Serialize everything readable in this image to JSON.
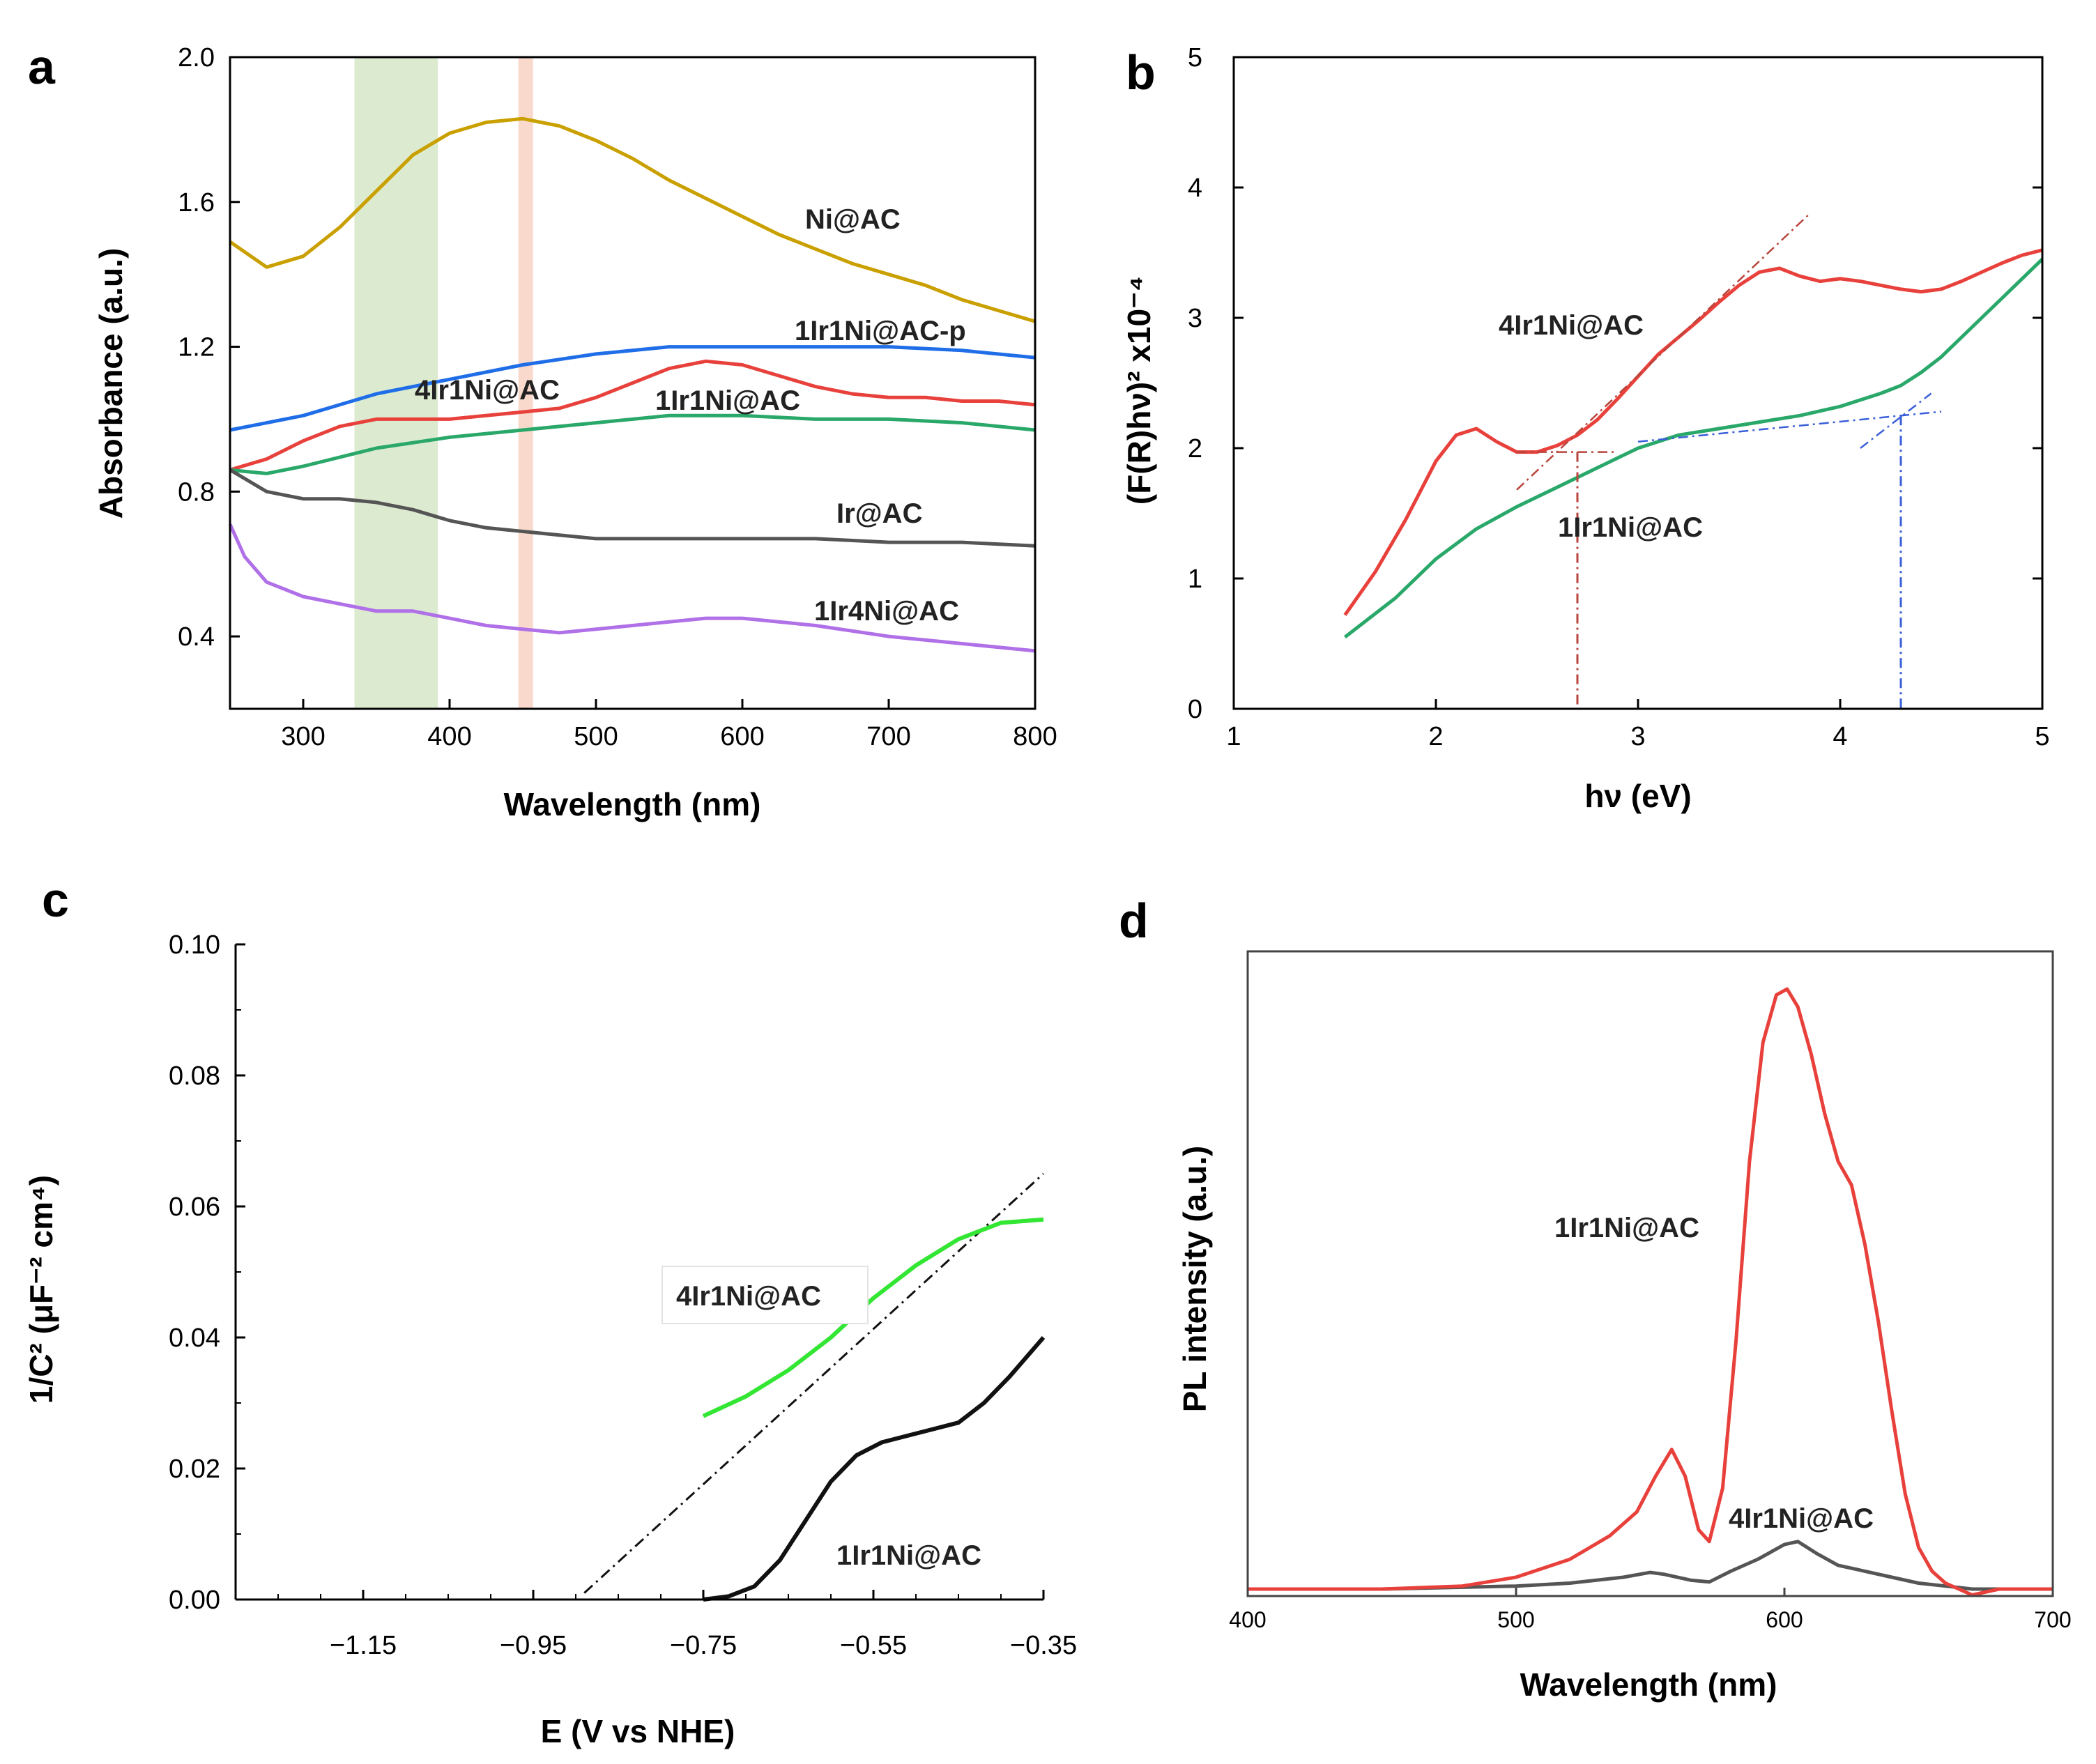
{
  "chart_data": [
    {
      "panel": "a",
      "type": "line",
      "title": "",
      "xlabel": "Wavelength (nm)",
      "ylabel": "Absorbance (a.u.)",
      "xlim": [
        250,
        800
      ],
      "ylim": [
        0.2,
        2.0
      ],
      "xticks": [
        300,
        400,
        500,
        600,
        700,
        800
      ],
      "yticks": [
        0.4,
        0.8,
        1.2,
        1.6,
        2.0
      ],
      "xtick_labels": [
        "300",
        "400",
        "500",
        "600",
        "700",
        "800"
      ],
      "ytick_labels": [
        "0.4",
        "0.8",
        "1.2",
        "1.6",
        "2.0"
      ],
      "bands": [
        {
          "from": 335,
          "to": 392,
          "color": "#dcebd0"
        },
        {
          "from": 447,
          "to": 457,
          "color": "#f8d9cc"
        }
      ],
      "series": [
        {
          "name": "Ni@AC",
          "color": "#c9a000",
          "x": [
            250,
            275,
            300,
            325,
            350,
            375,
            400,
            425,
            450,
            475,
            500,
            525,
            550,
            575,
            600,
            625,
            650,
            675,
            700,
            725,
            750,
            775,
            800
          ],
          "y": [
            1.49,
            1.42,
            1.45,
            1.53,
            1.63,
            1.73,
            1.79,
            1.82,
            1.83,
            1.81,
            1.77,
            1.72,
            1.66,
            1.61,
            1.56,
            1.51,
            1.47,
            1.43,
            1.4,
            1.37,
            1.33,
            1.3,
            1.27
          ]
        },
        {
          "name": "1Ir1Ni@AC-p",
          "color": "#1f6ee8",
          "x": [
            250,
            300,
            350,
            400,
            450,
            500,
            550,
            600,
            650,
            700,
            750,
            800
          ],
          "y": [
            0.97,
            1.01,
            1.07,
            1.11,
            1.15,
            1.18,
            1.2,
            1.2,
            1.2,
            1.2,
            1.19,
            1.17
          ]
        },
        {
          "name": "4Ir1Ni@AC",
          "color": "#e8413c",
          "x": [
            250,
            275,
            300,
            325,
            350,
            375,
            400,
            425,
            450,
            475,
            500,
            525,
            550,
            575,
            600,
            625,
            650,
            675,
            700,
            725,
            750,
            775,
            800
          ],
          "y": [
            0.86,
            0.89,
            0.94,
            0.98,
            1.0,
            1.0,
            1.0,
            1.01,
            1.02,
            1.03,
            1.06,
            1.1,
            1.14,
            1.16,
            1.15,
            1.12,
            1.09,
            1.07,
            1.06,
            1.06,
            1.05,
            1.05,
            1.04
          ]
        },
        {
          "name": "1Ir1Ni@AC",
          "color": "#2aa86a",
          "x": [
            250,
            275,
            300,
            350,
            400,
            450,
            500,
            550,
            600,
            650,
            700,
            750,
            800
          ],
          "y": [
            0.86,
            0.85,
            0.87,
            0.92,
            0.95,
            0.97,
            0.99,
            1.01,
            1.01,
            1.0,
            1.0,
            0.99,
            0.97
          ]
        },
        {
          "name": "Ir@AC",
          "color": "#555555",
          "x": [
            250,
            275,
            300,
            325,
            350,
            375,
            400,
            425,
            450,
            475,
            500,
            550,
            600,
            650,
            700,
            750,
            800
          ],
          "y": [
            0.86,
            0.8,
            0.78,
            0.78,
            0.77,
            0.75,
            0.72,
            0.7,
            0.69,
            0.68,
            0.67,
            0.67,
            0.67,
            0.67,
            0.66,
            0.66,
            0.65
          ]
        },
        {
          "name": "1Ir4Ni@AC",
          "color": "#b070e8",
          "x": [
            250,
            260,
            275,
            300,
            325,
            350,
            375,
            400,
            425,
            450,
            475,
            500,
            525,
            550,
            575,
            600,
            625,
            650,
            700,
            750,
            800
          ],
          "y": [
            0.71,
            0.62,
            0.55,
            0.51,
            0.49,
            0.47,
            0.47,
            0.45,
            0.43,
            0.42,
            0.41,
            0.42,
            0.43,
            0.44,
            0.45,
            0.45,
            0.44,
            0.43,
            0.4,
            0.38,
            0.36
          ]
        }
      ],
      "annotations": [
        "Ni@AC",
        "1Ir1Ni@AC-p",
        "4Ir1Ni@AC",
        "1Ir1Ni@AC",
        "Ir@AC",
        "1Ir4Ni@AC"
      ]
    },
    {
      "panel": "b",
      "type": "line",
      "title": "",
      "xlabel": "hν (eV)",
      "ylabel": "(F(R)hν)² x10⁻⁴",
      "xlim": [
        1,
        5
      ],
      "ylim": [
        0,
        5
      ],
      "xticks": [
        1,
        2,
        3,
        4,
        5
      ],
      "yticks": [
        0,
        1,
        2,
        3,
        4,
        5
      ],
      "xtick_labels": [
        "1",
        "2",
        "3",
        "4",
        "5"
      ],
      "ytick_labels": [
        "0",
        "1",
        "2",
        "3",
        "4",
        "5"
      ],
      "series": [
        {
          "name": "4Ir1Ni@AC",
          "color": "#e8413c",
          "x": [
            1.55,
            1.7,
            1.85,
            2.0,
            2.1,
            2.2,
            2.3,
            2.4,
            2.5,
            2.6,
            2.7,
            2.8,
            2.9,
            3.0,
            3.1,
            3.2,
            3.3,
            3.4,
            3.5,
            3.6,
            3.7,
            3.8,
            3.9,
            4.0,
            4.1,
            4.2,
            4.3,
            4.4,
            4.5,
            4.6,
            4.7,
            4.8,
            4.9,
            5.0
          ],
          "y": [
            0.72,
            1.05,
            1.45,
            1.9,
            2.1,
            2.15,
            2.05,
            1.97,
            1.97,
            2.02,
            2.1,
            2.22,
            2.38,
            2.55,
            2.72,
            2.85,
            2.98,
            3.12,
            3.25,
            3.35,
            3.38,
            3.32,
            3.28,
            3.3,
            3.28,
            3.25,
            3.22,
            3.2,
            3.22,
            3.28,
            3.35,
            3.42,
            3.48,
            3.52
          ]
        },
        {
          "name": "1Ir1Ni@AC",
          "color": "#2aa86a",
          "x": [
            1.55,
            1.8,
            2.0,
            2.2,
            2.4,
            2.6,
            2.8,
            3.0,
            3.2,
            3.4,
            3.6,
            3.8,
            4.0,
            4.2,
            4.3,
            4.4,
            4.5,
            4.6,
            4.7,
            4.8,
            4.9,
            5.0
          ],
          "y": [
            0.55,
            0.85,
            1.15,
            1.38,
            1.55,
            1.7,
            1.85,
            2.0,
            2.1,
            2.15,
            2.2,
            2.25,
            2.32,
            2.42,
            2.48,
            2.58,
            2.7,
            2.85,
            3.0,
            3.15,
            3.3,
            3.45
          ]
        }
      ],
      "tangent_lines": [
        {
          "color": "#b8453c",
          "x": [
            2.4,
            3.85
          ],
          "y": [
            1.68,
            3.8
          ]
        },
        {
          "color": "#b8453c",
          "x": [
            2.4,
            2.9
          ],
          "y": [
            1.97,
            1.97
          ]
        },
        {
          "color": "#3a5fd8",
          "x": [
            3.0,
            4.5
          ],
          "y": [
            2.05,
            2.28
          ]
        },
        {
          "color": "#3a5fd8",
          "x": [
            4.1,
            4.45
          ],
          "y": [
            2.0,
            2.42
          ]
        }
      ],
      "drop_lines": [
        {
          "color": "#b8453c",
          "x": 2.7,
          "y_top": 1.97
        },
        {
          "color": "#3a5fd8",
          "x": 4.3,
          "y_top": 2.25
        }
      ],
      "annotations": [
        "4Ir1Ni@AC",
        "1Ir1Ni@AC"
      ]
    },
    {
      "panel": "c",
      "type": "line",
      "title": "",
      "xlabel": "E (V vs NHE)",
      "ylabel": "1/C² (μF⁻² cm⁴)",
      "xlim": [
        -1.3,
        -0.35
      ],
      "ylim": [
        0,
        0.1
      ],
      "xticks": [
        -1.15,
        -0.95,
        -0.75,
        -0.55,
        -0.35
      ],
      "yticks": [
        0.0,
        0.02,
        0.04,
        0.06,
        0.08,
        0.1
      ],
      "xtick_labels": [
        "−1.15",
        "−0.95",
        "−0.75",
        "−0.55",
        "−0.35"
      ],
      "ytick_labels": [
        "0.00",
        "0.02",
        "0.04",
        "0.06",
        "0.08",
        "0.10"
      ],
      "series": [
        {
          "name": "4Ir1Ni@AC",
          "color": "#33e633",
          "x": [
            -0.75,
            -0.7,
            -0.65,
            -0.6,
            -0.55,
            -0.5,
            -0.45,
            -0.4,
            -0.35
          ],
          "y": [
            0.028,
            0.031,
            0.035,
            0.04,
            0.046,
            0.051,
            0.055,
            0.0575,
            0.058
          ]
        },
        {
          "name": "1Ir1Ni@AC",
          "color": "#111111",
          "x": [
            -0.75,
            -0.72,
            -0.69,
            -0.66,
            -0.63,
            -0.6,
            -0.57,
            -0.54,
            -0.51,
            -0.48,
            -0.45,
            -0.42,
            -0.39,
            -0.35
          ],
          "y": [
            0.0,
            0.0005,
            0.002,
            0.006,
            0.012,
            0.018,
            0.022,
            0.024,
            0.025,
            0.026,
            0.027,
            0.03,
            0.034,
            0.04
          ]
        }
      ],
      "fit_line": {
        "color": "#111111",
        "x": [
          -0.89,
          -0.35
        ],
        "y": [
          0.001,
          0.065
        ]
      },
      "annotations": [
        "4Ir1Ni@AC",
        "1Ir1Ni@AC"
      ]
    },
    {
      "panel": "d",
      "type": "line",
      "title": "",
      "xlabel": "Wavelength (nm)",
      "ylabel": "PL intensity (a.u.)",
      "xlim": [
        400,
        700
      ],
      "ylim": [
        0,
        1.05
      ],
      "xticks": [
        400,
        500,
        600,
        700
      ],
      "xtick_labels": [
        "400",
        "500",
        "600",
        "700"
      ],
      "series": [
        {
          "name": "1Ir1Ni@AC",
          "color": "#e8413c",
          "x": [
            400,
            450,
            480,
            500,
            520,
            535,
            545,
            552,
            558,
            563,
            568,
            572,
            577,
            582,
            587,
            592,
            597,
            601,
            605,
            610,
            615,
            620,
            625,
            630,
            635,
            640,
            645,
            650,
            655,
            660,
            665,
            670,
            680,
            700
          ],
          "y": [
            0.0,
            0.0,
            0.005,
            0.02,
            0.05,
            0.09,
            0.13,
            0.19,
            0.235,
            0.19,
            0.1,
            0.08,
            0.17,
            0.42,
            0.72,
            0.92,
            1.0,
            1.01,
            0.98,
            0.9,
            0.8,
            0.72,
            0.68,
            0.58,
            0.45,
            0.3,
            0.16,
            0.07,
            0.03,
            0.01,
            0.0,
            -0.01,
            0.0,
            0.0
          ]
        },
        {
          "name": "4Ir1Ni@AC",
          "color": "#555555",
          "x": [
            400,
            450,
            500,
            520,
            540,
            550,
            555,
            565,
            572,
            580,
            590,
            600,
            605,
            612,
            620,
            630,
            640,
            650,
            660,
            670,
            700
          ],
          "y": [
            0.0,
            0.0,
            0.005,
            0.01,
            0.02,
            0.028,
            0.025,
            0.015,
            0.012,
            0.03,
            0.05,
            0.075,
            0.08,
            0.06,
            0.04,
            0.03,
            0.02,
            0.01,
            0.005,
            0.0,
            0.0
          ]
        }
      ],
      "annotations": [
        "1Ir1Ni@AC",
        "4Ir1Ni@AC"
      ]
    }
  ]
}
